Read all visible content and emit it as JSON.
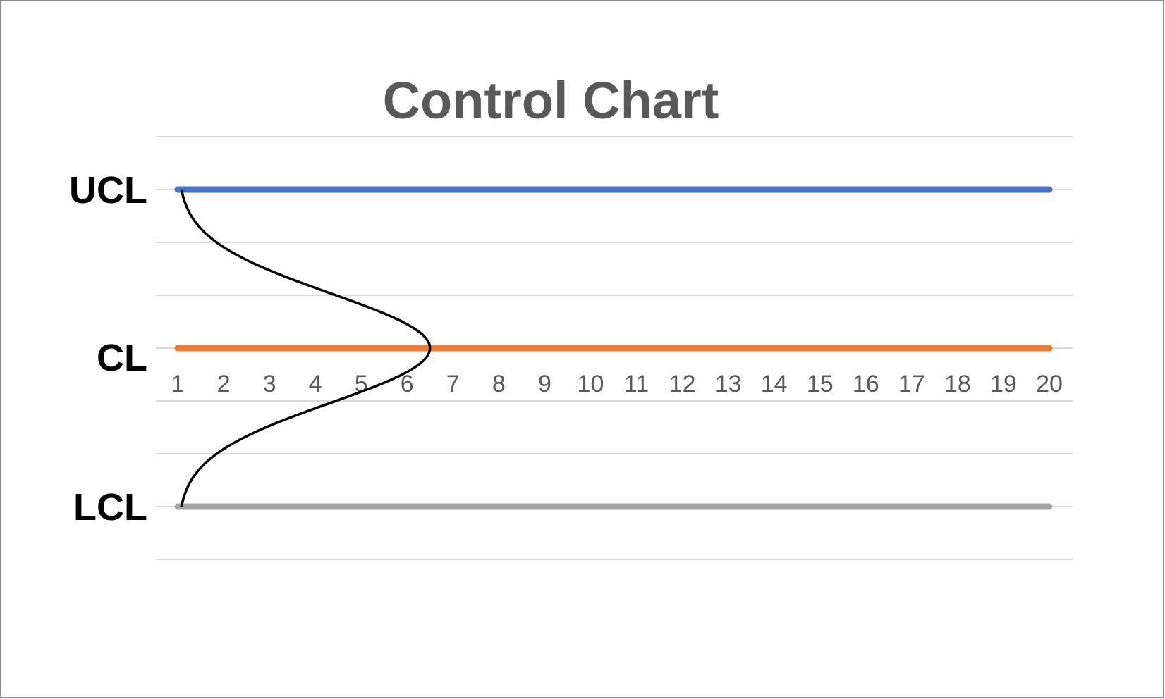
{
  "chart_data": {
    "type": "line",
    "title": "Control Chart",
    "x": [
      1,
      2,
      3,
      4,
      5,
      6,
      7,
      8,
      9,
      10,
      11,
      12,
      13,
      14,
      15,
      16,
      17,
      18,
      19,
      20
    ],
    "x_tick_labels": [
      "1",
      "2",
      "3",
      "4",
      "5",
      "6",
      "7",
      "8",
      "9",
      "10",
      "11",
      "12",
      "13",
      "14",
      "15",
      "16",
      "17",
      "18",
      "19",
      "20"
    ],
    "ylim": [
      -4,
      4
    ],
    "grid": true,
    "legend": "none",
    "series": [
      {
        "name": "UCL",
        "values": [
          3,
          3,
          3,
          3,
          3,
          3,
          3,
          3,
          3,
          3,
          3,
          3,
          3,
          3,
          3,
          3,
          3,
          3,
          3,
          3
        ],
        "color": "#4472c4"
      },
      {
        "name": "CL",
        "values": [
          0,
          0,
          0,
          0,
          0,
          0,
          0,
          0,
          0,
          0,
          0,
          0,
          0,
          0,
          0,
          0,
          0,
          0,
          0,
          0
        ],
        "color": "#ed7d31"
      },
      {
        "name": "LCL",
        "values": [
          -3,
          -3,
          -3,
          -3,
          -3,
          -3,
          -3,
          -3,
          -3,
          -3,
          -3,
          -3,
          -3,
          -3,
          -3,
          -3,
          -3,
          -3,
          -3,
          -3
        ],
        "color": "#a5a5a5"
      }
    ],
    "annotations": {
      "level_labels": [
        {
          "text": "UCL",
          "value": 3
        },
        {
          "text": "CL",
          "value": 0
        },
        {
          "text": "LCL",
          "value": -3
        }
      ],
      "distribution_curve": {
        "description_shape": "sideways bell curve",
        "color": "#000000",
        "ends_at_value": [
          3,
          -3
        ],
        "peak_x": 6.5,
        "base_x": 1
      }
    },
    "colors": {
      "gridline": "#d9d9d9",
      "text": "#595959",
      "curve": "#000000"
    }
  }
}
